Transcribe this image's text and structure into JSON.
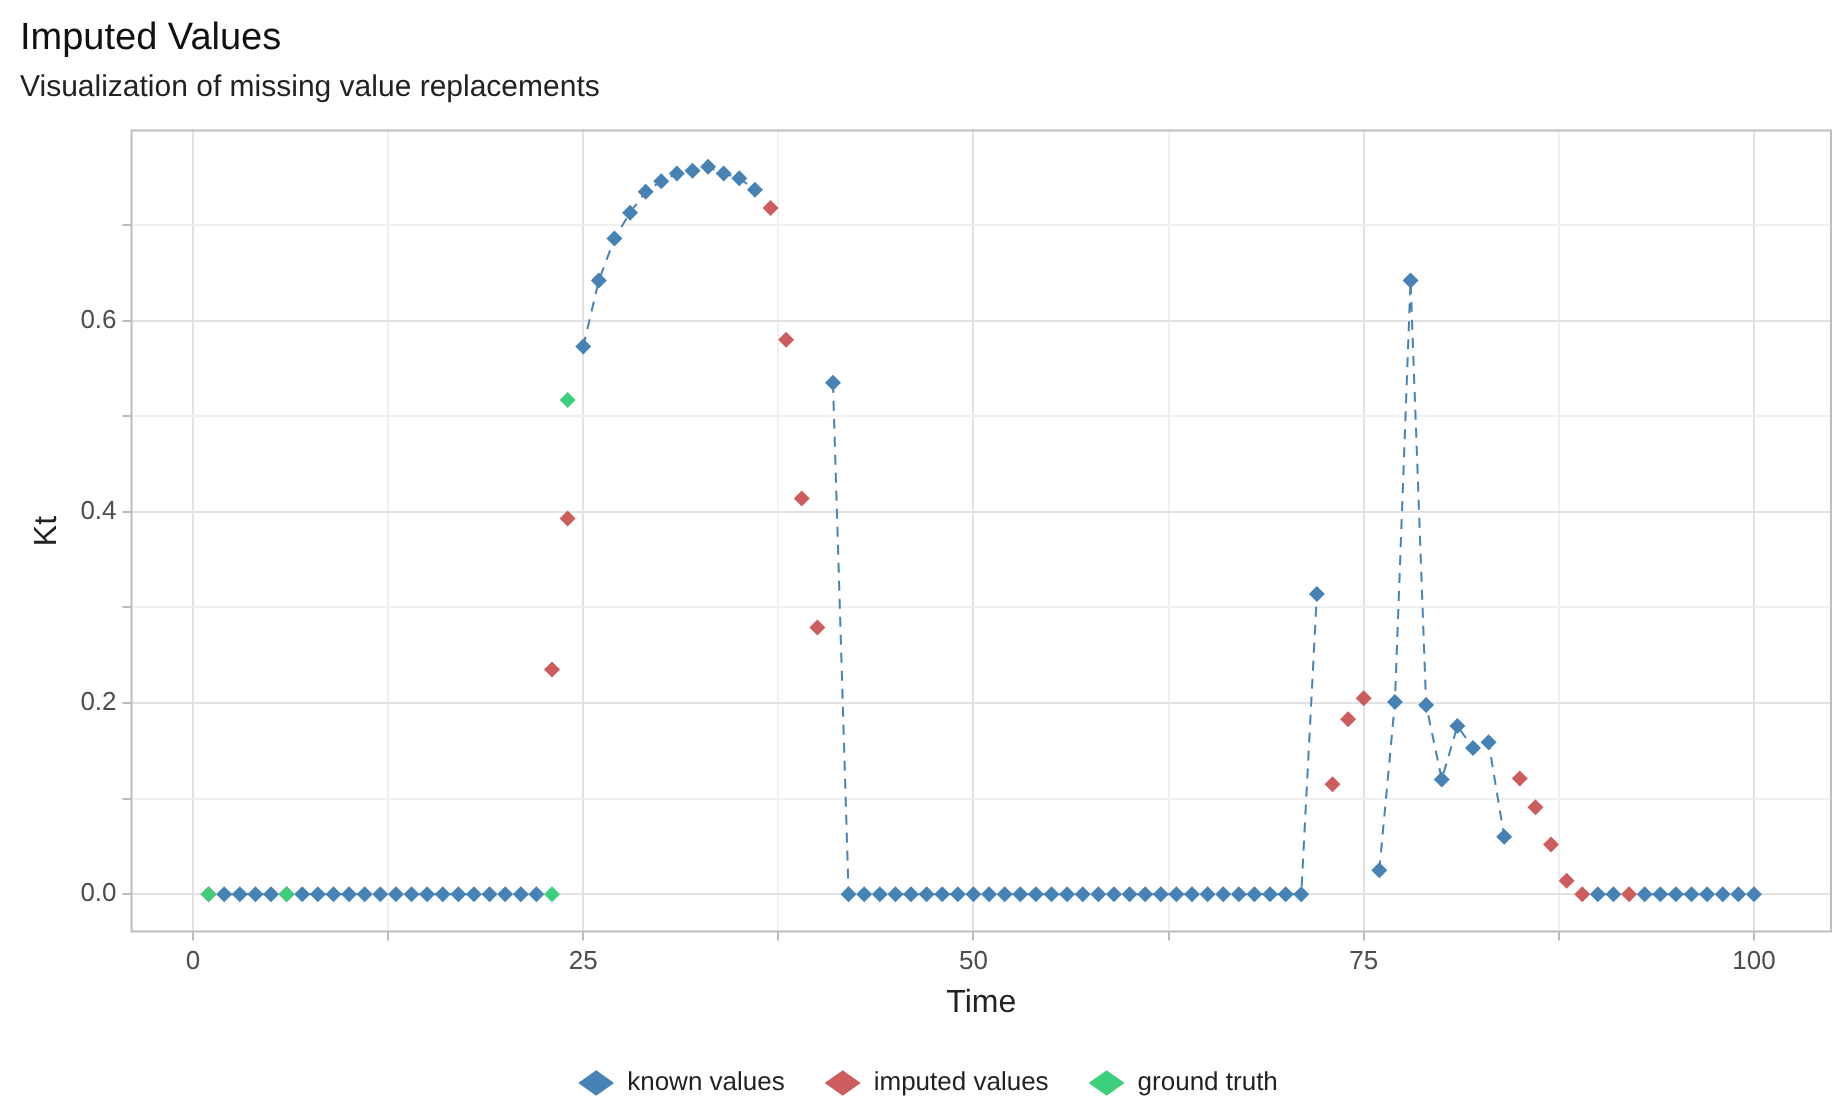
{
  "chart_data": {
    "type": "scatter",
    "title": "Imputed Values",
    "subtitle": "Visualization of missing value replacements",
    "xlabel": "Time",
    "ylabel": "Kt",
    "x": [
      1,
      2,
      3,
      4,
      5,
      6,
      7,
      8,
      9,
      10,
      11,
      12,
      13,
      14,
      15,
      16,
      17,
      18,
      19,
      20,
      21,
      22,
      23,
      24,
      25,
      26,
      27,
      28,
      29,
      30,
      31,
      32,
      33,
      34,
      35,
      36,
      37,
      38,
      39,
      40,
      41,
      42,
      43,
      44,
      45,
      46,
      47,
      48,
      49,
      50,
      51,
      52,
      53,
      54,
      55,
      56,
      57,
      58,
      59,
      60,
      61,
      62,
      63,
      64,
      65,
      66,
      67,
      68,
      69,
      70,
      71,
      72,
      73,
      74,
      75,
      76,
      77,
      78,
      79,
      80,
      81,
      82,
      83,
      84,
      85,
      86,
      87,
      88,
      89,
      90,
      91,
      92,
      93,
      94,
      95,
      96,
      97,
      98,
      99,
      100
    ],
    "series": [
      {
        "name": "known values",
        "type": "line",
        "line_style": "dashed",
        "color": "#4682b4",
        "values": [
          null,
          0,
          0,
          0,
          0,
          null,
          0,
          0,
          0,
          0,
          0,
          0,
          0,
          0,
          0,
          0,
          0,
          0,
          0,
          0,
          0,
          0,
          null,
          null,
          0.573,
          0.642,
          0.686,
          0.713,
          0.735,
          0.746,
          0.754,
          0.757,
          0.761,
          0.754,
          0.749,
          0.737,
          null,
          null,
          null,
          null,
          0.535,
          0,
          0,
          0,
          0,
          0,
          0,
          0,
          0,
          0,
          0,
          0,
          0,
          0,
          0,
          0,
          0,
          0,
          0,
          0,
          0,
          0,
          0,
          0,
          0,
          0,
          0,
          0,
          0,
          0,
          0,
          0.314,
          null,
          null,
          null,
          0.025,
          0.201,
          0.642,
          0.198,
          0.12,
          0.176,
          0.153,
          0.159,
          0.06,
          null,
          null,
          null,
          null,
          null,
          0,
          0,
          null,
          0,
          0,
          0,
          0,
          0,
          0,
          0,
          0
        ]
      },
      {
        "name": "imputed values",
        "color": "#cd5c5c",
        "values": [
          0,
          null,
          null,
          null,
          null,
          0,
          null,
          null,
          null,
          null,
          null,
          null,
          null,
          null,
          null,
          null,
          null,
          null,
          null,
          null,
          null,
          null,
          0.235,
          0.393,
          null,
          null,
          null,
          null,
          null,
          null,
          null,
          null,
          null,
          null,
          null,
          null,
          0.718,
          0.58,
          0.414,
          0.279,
          null,
          null,
          null,
          null,
          null,
          null,
          null,
          null,
          null,
          null,
          null,
          null,
          null,
          null,
          null,
          null,
          null,
          null,
          null,
          null,
          null,
          null,
          null,
          null,
          null,
          null,
          null,
          null,
          null,
          null,
          null,
          null,
          0.115,
          0.183,
          0.205,
          null,
          null,
          null,
          null,
          null,
          null,
          null,
          null,
          null,
          0.121,
          0.091,
          0.052,
          0.014,
          0,
          null,
          null,
          0,
          null,
          null,
          null,
          null,
          null,
          null,
          null,
          null
        ]
      },
      {
        "name": "ground truth",
        "color": "#3ecf7c",
        "values": [
          0,
          null,
          null,
          null,
          null,
          0,
          null,
          null,
          null,
          null,
          null,
          null,
          null,
          null,
          null,
          null,
          null,
          null,
          null,
          null,
          null,
          null,
          0,
          0.517,
          null,
          null,
          null,
          null,
          null,
          null,
          null,
          null,
          null,
          null,
          null,
          null,
          null,
          null,
          null,
          null,
          null,
          null,
          null,
          null,
          null,
          null,
          null,
          null,
          null,
          null,
          null,
          null,
          null,
          null,
          null,
          null,
          null,
          null,
          null,
          null,
          null,
          null,
          null,
          null,
          null,
          null,
          null,
          null,
          null,
          null,
          null,
          null,
          null,
          null,
          null,
          null,
          null,
          null,
          null,
          null,
          null,
          null,
          null,
          null,
          null,
          null,
          null,
          null,
          null,
          null,
          null,
          null,
          null,
          null,
          null,
          null,
          null,
          null,
          null,
          null
        ]
      }
    ],
    "xlim": [
      -4,
      105
    ],
    "xticks": [
      0,
      {
        "value": 12.5,
        "label": null
      },
      25,
      {
        "value": 37.5,
        "label": null
      },
      50,
      {
        "value": 62.5,
        "label": null
      },
      75,
      {
        "value": 87.5,
        "label": null
      },
      100
    ],
    "ylim": [
      -0.04,
      0.8
    ],
    "yticks": [
      {
        "value": 0,
        "label": "0.0"
      },
      {
        "value": 0.1,
        "label": null
      },
      {
        "value": 0.2,
        "label": "0.2"
      },
      {
        "value": 0.3,
        "label": null
      },
      {
        "value": 0.4,
        "label": "0.4"
      },
      {
        "value": 0.5,
        "label": null
      },
      {
        "value": 0.6,
        "label": "0.6"
      },
      {
        "value": 0.7,
        "label": null
      }
    ],
    "grid": true,
    "legend": "bottom",
    "marker": "diamond"
  }
}
